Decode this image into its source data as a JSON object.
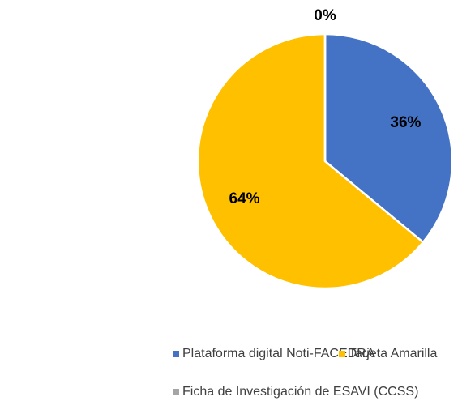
{
  "chart_data": {
    "type": "pie",
    "categories": [
      "Plataforma digital Noti-FACEDRA",
      "Tarjeta Amarilla",
      "Ficha de Investigación de ESAVI (CCSS)"
    ],
    "values": [
      36,
      64,
      0
    ],
    "value_labels": [
      "36%",
      "64%",
      "0%"
    ],
    "colors": [
      "#4472c4",
      "#ffc000",
      "#a5a5a5"
    ],
    "legend": "bottom"
  }
}
